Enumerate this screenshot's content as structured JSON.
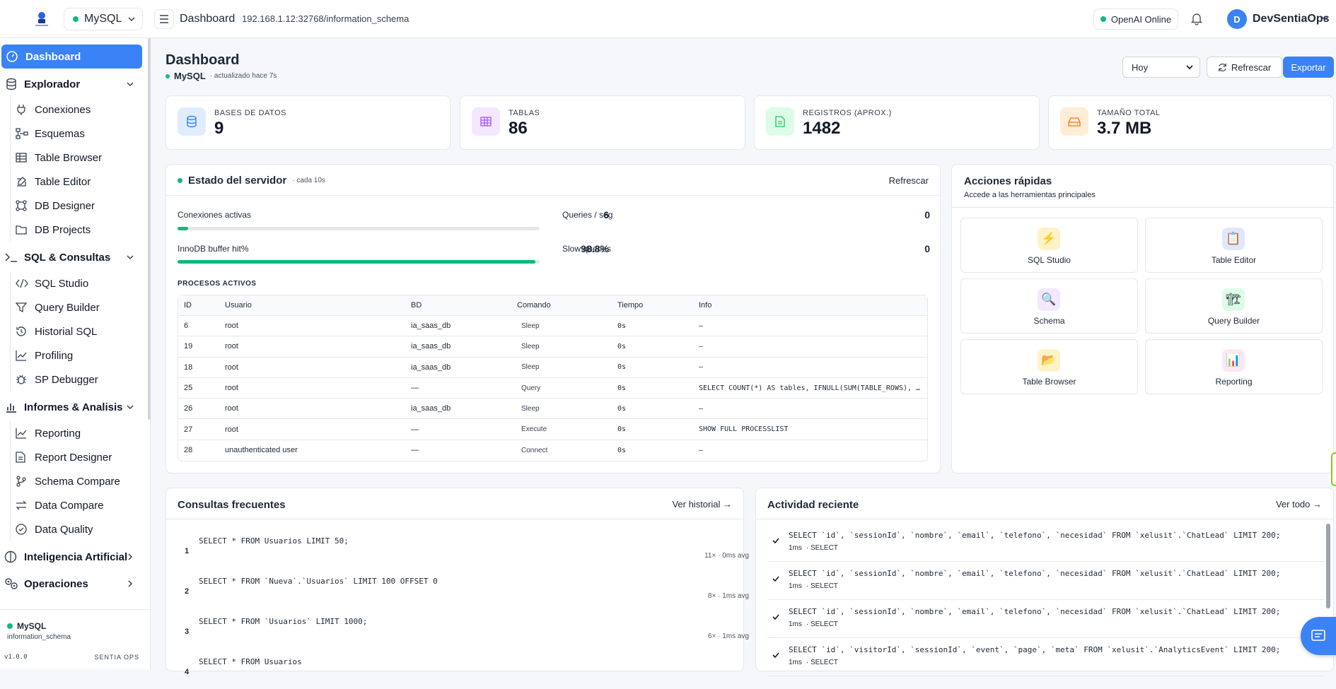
{
  "topbar": {
    "db_selector": "MySQL",
    "title": "Dashboard",
    "path": "192.168.1.12:32768/information_schema",
    "ai_status": "OpenAI Online",
    "user_initial": "D",
    "user_name": "DevSentiaOps"
  },
  "sidebar": {
    "dashboard": "Dashboard",
    "explorador": {
      "label": "Explorador",
      "items": [
        "Conexiones",
        "Esquemas",
        "Table Browser",
        "Table Editor",
        "DB Designer",
        "DB Projects"
      ]
    },
    "sql": {
      "label": "SQL & Consultas",
      "items": [
        "SQL Studio",
        "Query Builder",
        "Historial SQL",
        "Profiling",
        "SP Debugger"
      ]
    },
    "informes": {
      "label": "Informes & Analisis",
      "items": [
        "Reporting",
        "Report Designer",
        "Schema Compare",
        "Data Compare",
        "Data Quality"
      ]
    },
    "ia": "Inteligencia Artificial",
    "operaciones": "Operaciones",
    "footer": {
      "db": "MySQL",
      "schema": "information_schema",
      "version": "v1.0.0",
      "brand": "SENTIA OPS"
    }
  },
  "header": {
    "title": "Dashboard",
    "db": "MySQL",
    "updated": "· actualizado hace 7s",
    "period": "Hoy",
    "refresh": "Refrescar",
    "export": "Exportar"
  },
  "stats": [
    {
      "label": "BASES DE DATOS",
      "value": "9"
    },
    {
      "label": "TABLAS",
      "value": "86"
    },
    {
      "label": "REGISTROS (APROX.)",
      "value": "1482"
    },
    {
      "label": "TAMAÑO TOTAL",
      "value": "3.7 MB"
    }
  ],
  "server": {
    "title": "Estado del servidor",
    "interval": "· cada 10s",
    "refresh": "Refrescar",
    "conexiones_label": "Conexiones activas",
    "conexiones_value": "6",
    "conexiones_fraction": 0.03,
    "queries_label": "Queries / seg",
    "queries_value": "0",
    "innodb_label": "InnoDB buffer hit%",
    "innodb_value": "98.8%",
    "innodb_fraction": 0.988,
    "slow_label": "Slow queries",
    "slow_value": "0",
    "procesos_title": "PROCESOS ACTIVOS",
    "columns": [
      "ID",
      "Usuario",
      "BD",
      "Comando",
      "Tiempo",
      "Info"
    ],
    "rows": [
      [
        "6",
        "root",
        "ia_saas_db",
        "Sleep",
        "0s",
        "—"
      ],
      [
        "19",
        "root",
        "ia_saas_db",
        "Sleep",
        "0s",
        "—"
      ],
      [
        "18",
        "root",
        "ia_saas_db",
        "Sleep",
        "0s",
        "—"
      ],
      [
        "25",
        "root",
        "—",
        "Query",
        "0s",
        "SELECT COUNT(*) AS tables, IFNULL(SUM(TABLE_ROWS), …"
      ],
      [
        "26",
        "root",
        "ia_saas_db",
        "Sleep",
        "0s",
        "—"
      ],
      [
        "27",
        "root",
        "—",
        "Execute",
        "0s",
        "SHOW FULL PROCESSLIST"
      ],
      [
        "28",
        "unauthenticated user",
        "—",
        "Connect",
        "0s",
        "—"
      ]
    ]
  },
  "quick": {
    "title": "Acciones rápidas",
    "subtitle": "Accede a las herramientas principales",
    "tiles": [
      {
        "label": "SQL Studio",
        "icon": "⚡"
      },
      {
        "label": "Table Editor",
        "icon": "📋"
      },
      {
        "label": "Schema",
        "icon": "🔍"
      },
      {
        "label": "Query Builder",
        "icon": "🏗"
      },
      {
        "label": "Table Browser",
        "icon": "📂"
      },
      {
        "label": "Reporting",
        "icon": "📊"
      }
    ]
  },
  "frequent": {
    "title": "Consultas frecuentes",
    "link": "Ver historial →",
    "items": [
      {
        "n": "1",
        "sql": "SELECT * FROM Usuarios LIMIT 50;",
        "meta": "11× · 0ms avg"
      },
      {
        "n": "2",
        "sql": "SELECT * FROM `Nueva`.`Usuarios` LIMIT 100 OFFSET 0",
        "meta": "8× · 1ms avg"
      },
      {
        "n": "3",
        "sql": "SELECT * FROM `Usuarios` LIMIT 1000;",
        "meta": "6× · 1ms avg"
      },
      {
        "n": "4",
        "sql": "SELECT * FROM Usuarios",
        "meta": ""
      }
    ]
  },
  "activity": {
    "title": "Actividad reciente",
    "link": "Ver todo →",
    "items": [
      {
        "sql": "SELECT `id`, `sessionId`, `nombre`, `email`, `telefono`, `necesidad` FROM `xelusit`.`ChatLead` LIMIT 200;",
        "time": "1ms",
        "kind": "· SELECT"
      },
      {
        "sql": "SELECT `id`, `sessionId`, `nombre`, `email`, `telefono`, `necesidad` FROM `xelusit`.`ChatLead` LIMIT 200;",
        "time": "1ms",
        "kind": "· SELECT"
      },
      {
        "sql": "SELECT `id`, `sessionId`, `nombre`, `email`, `telefono`, `necesidad` FROM `xelusit`.`ChatLead` LIMIT 200;",
        "time": "1ms",
        "kind": "· SELECT"
      },
      {
        "sql": "SELECT `id`, `visitorId`, `sessionId`, `event`, `page`, `meta` FROM `xelusit`.`AnalyticsEvent` LIMIT 200;",
        "time": "1ms",
        "kind": "· SELECT"
      }
    ]
  }
}
